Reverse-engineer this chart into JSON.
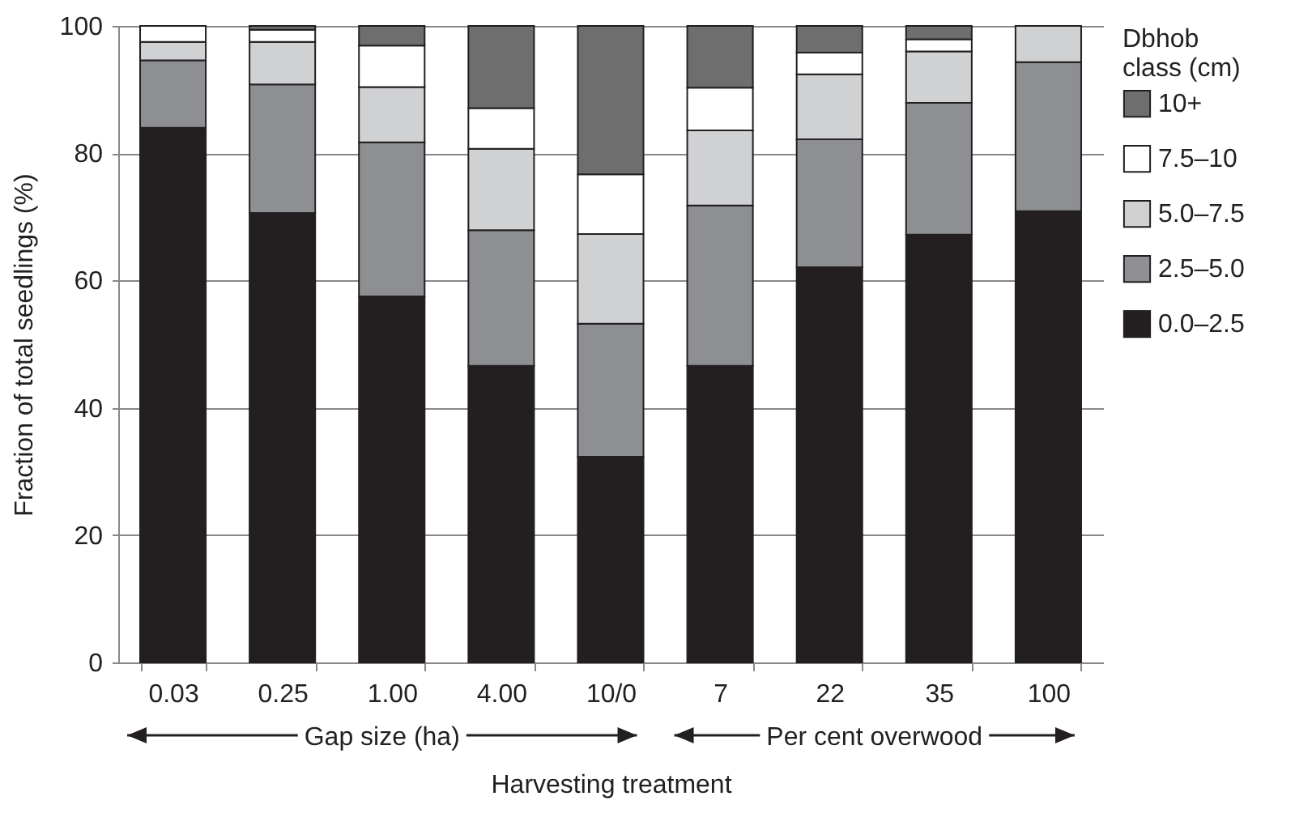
{
  "chart_data": {
    "type": "bar",
    "stacked": true,
    "ylabel": "Fraction of total seedlings (%)",
    "xlabel": "Harvesting treatment",
    "legend_title": "Dbhob class (cm)",
    "legend": "right",
    "grid": "y",
    "categories": [
      "0.03",
      "0.25",
      "1.00",
      "4.00",
      "10/0",
      "7",
      "22",
      "35",
      "100"
    ],
    "ylim": [
      0,
      100
    ],
    "yticks": [
      0,
      20,
      40,
      60,
      80,
      100
    ],
    "annotations": [
      "Gap size (ha)",
      "Per cent overwood"
    ],
    "series": [
      {
        "name": "0.0–2.5",
        "color": "#231f20",
        "values": [
          84.0,
          70.6,
          57.5,
          46.6,
          32.3,
          46.6,
          62.1,
          67.2,
          70.9
        ]
      },
      {
        "name": "2.5–5.0",
        "color": "#8e8f92",
        "values": [
          10.6,
          20.2,
          24.2,
          21.3,
          20.9,
          25.2,
          20.1,
          20.7,
          23.4
        ]
      },
      {
        "name": "5.0–7.5",
        "color": "#d0d1d3",
        "values": [
          2.9,
          6.7,
          8.7,
          12.8,
          14.1,
          11.8,
          10.2,
          8.1,
          5.7
        ]
      },
      {
        "name": "7.5–10",
        "color": "#ffffff",
        "values": [
          2.5,
          1.9,
          6.5,
          6.4,
          9.4,
          6.7,
          3.4,
          1.9,
          0
        ]
      },
      {
        "name": "10+",
        "color": "#6e6e6e",
        "values": [
          0,
          0.6,
          3.1,
          12.9,
          23.3,
          9.7,
          4.2,
          2.1,
          0
        ]
      }
    ]
  }
}
